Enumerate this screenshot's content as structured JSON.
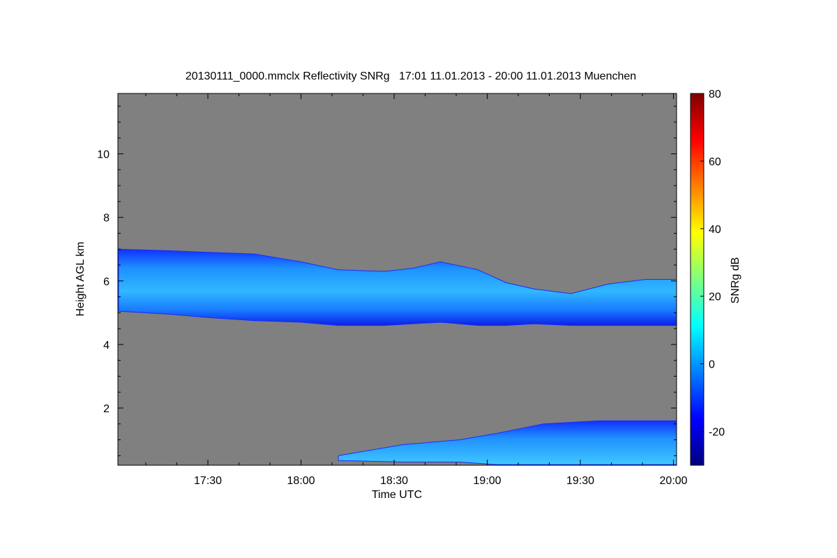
{
  "chart_data": {
    "type": "heatmap",
    "title": "20130111_0000.mmclx Reflectivity SNRg   17:01 11.01.2013 - 20:00 11.01.2013 Muenchen",
    "xlabel": "Time UTC",
    "ylabel": "Height AGL km",
    "xlim": [
      "17:01",
      "20:01"
    ],
    "ylim": [
      0.2,
      11.9
    ],
    "x_ticks": [
      "17:30",
      "18:00",
      "18:30",
      "19:00",
      "19:30",
      "20:00"
    ],
    "y_ticks": [
      2,
      4,
      6,
      8,
      10
    ],
    "background_color": "#808080",
    "grid": false,
    "colorbar": {
      "label": "SNRg dB",
      "range": [
        -30,
        80
      ],
      "ticks": [
        -20,
        0,
        20,
        40,
        60,
        80
      ],
      "colormap": "jet",
      "stops": [
        "#00007f",
        "#0000ff",
        "#007fff",
        "#00ffff",
        "#7fff7f",
        "#ffff00",
        "#ff7f00",
        "#ff0000",
        "#7f0000"
      ]
    },
    "features": [
      {
        "name": "upper cloud layer",
        "snr_range_db": [
          -20,
          10
        ],
        "top_km": [
          [
            17.02,
            7.0
          ],
          [
            17.3,
            6.95
          ],
          [
            17.5,
            6.9
          ],
          [
            17.75,
            6.85
          ],
          [
            18.0,
            6.6
          ],
          [
            18.2,
            6.35
          ],
          [
            18.45,
            6.3
          ],
          [
            18.6,
            6.4
          ],
          [
            18.75,
            6.6
          ],
          [
            18.95,
            6.35
          ],
          [
            19.1,
            5.95
          ],
          [
            19.25,
            5.75
          ],
          [
            19.45,
            5.6
          ],
          [
            19.65,
            5.9
          ],
          [
            19.85,
            6.05
          ],
          [
            20.02,
            6.05
          ]
        ],
        "base_km": [
          [
            17.02,
            5.05
          ],
          [
            17.3,
            4.95
          ],
          [
            17.5,
            4.85
          ],
          [
            17.75,
            4.75
          ],
          [
            18.0,
            4.7
          ],
          [
            18.2,
            4.6
          ],
          [
            18.45,
            4.6
          ],
          [
            18.6,
            4.65
          ],
          [
            18.75,
            4.7
          ],
          [
            18.95,
            4.6
          ],
          [
            19.1,
            4.6
          ],
          [
            19.25,
            4.65
          ],
          [
            19.45,
            4.6
          ],
          [
            19.65,
            4.6
          ],
          [
            19.85,
            4.6
          ],
          [
            20.02,
            4.6
          ]
        ]
      },
      {
        "name": "low cloud layer",
        "snr_range_db": [
          -20,
          10
        ],
        "top_km": [
          [
            18.2,
            0.5
          ],
          [
            18.55,
            0.85
          ],
          [
            18.85,
            1.0
          ],
          [
            19.05,
            1.2
          ],
          [
            19.3,
            1.5
          ],
          [
            19.6,
            1.6
          ],
          [
            20.02,
            1.6
          ]
        ],
        "base_km": [
          [
            18.2,
            0.35
          ],
          [
            18.55,
            0.3
          ],
          [
            18.85,
            0.3
          ],
          [
            19.05,
            0.22
          ],
          [
            19.3,
            0.22
          ],
          [
            19.6,
            0.22
          ],
          [
            20.02,
            0.22
          ]
        ]
      }
    ]
  }
}
